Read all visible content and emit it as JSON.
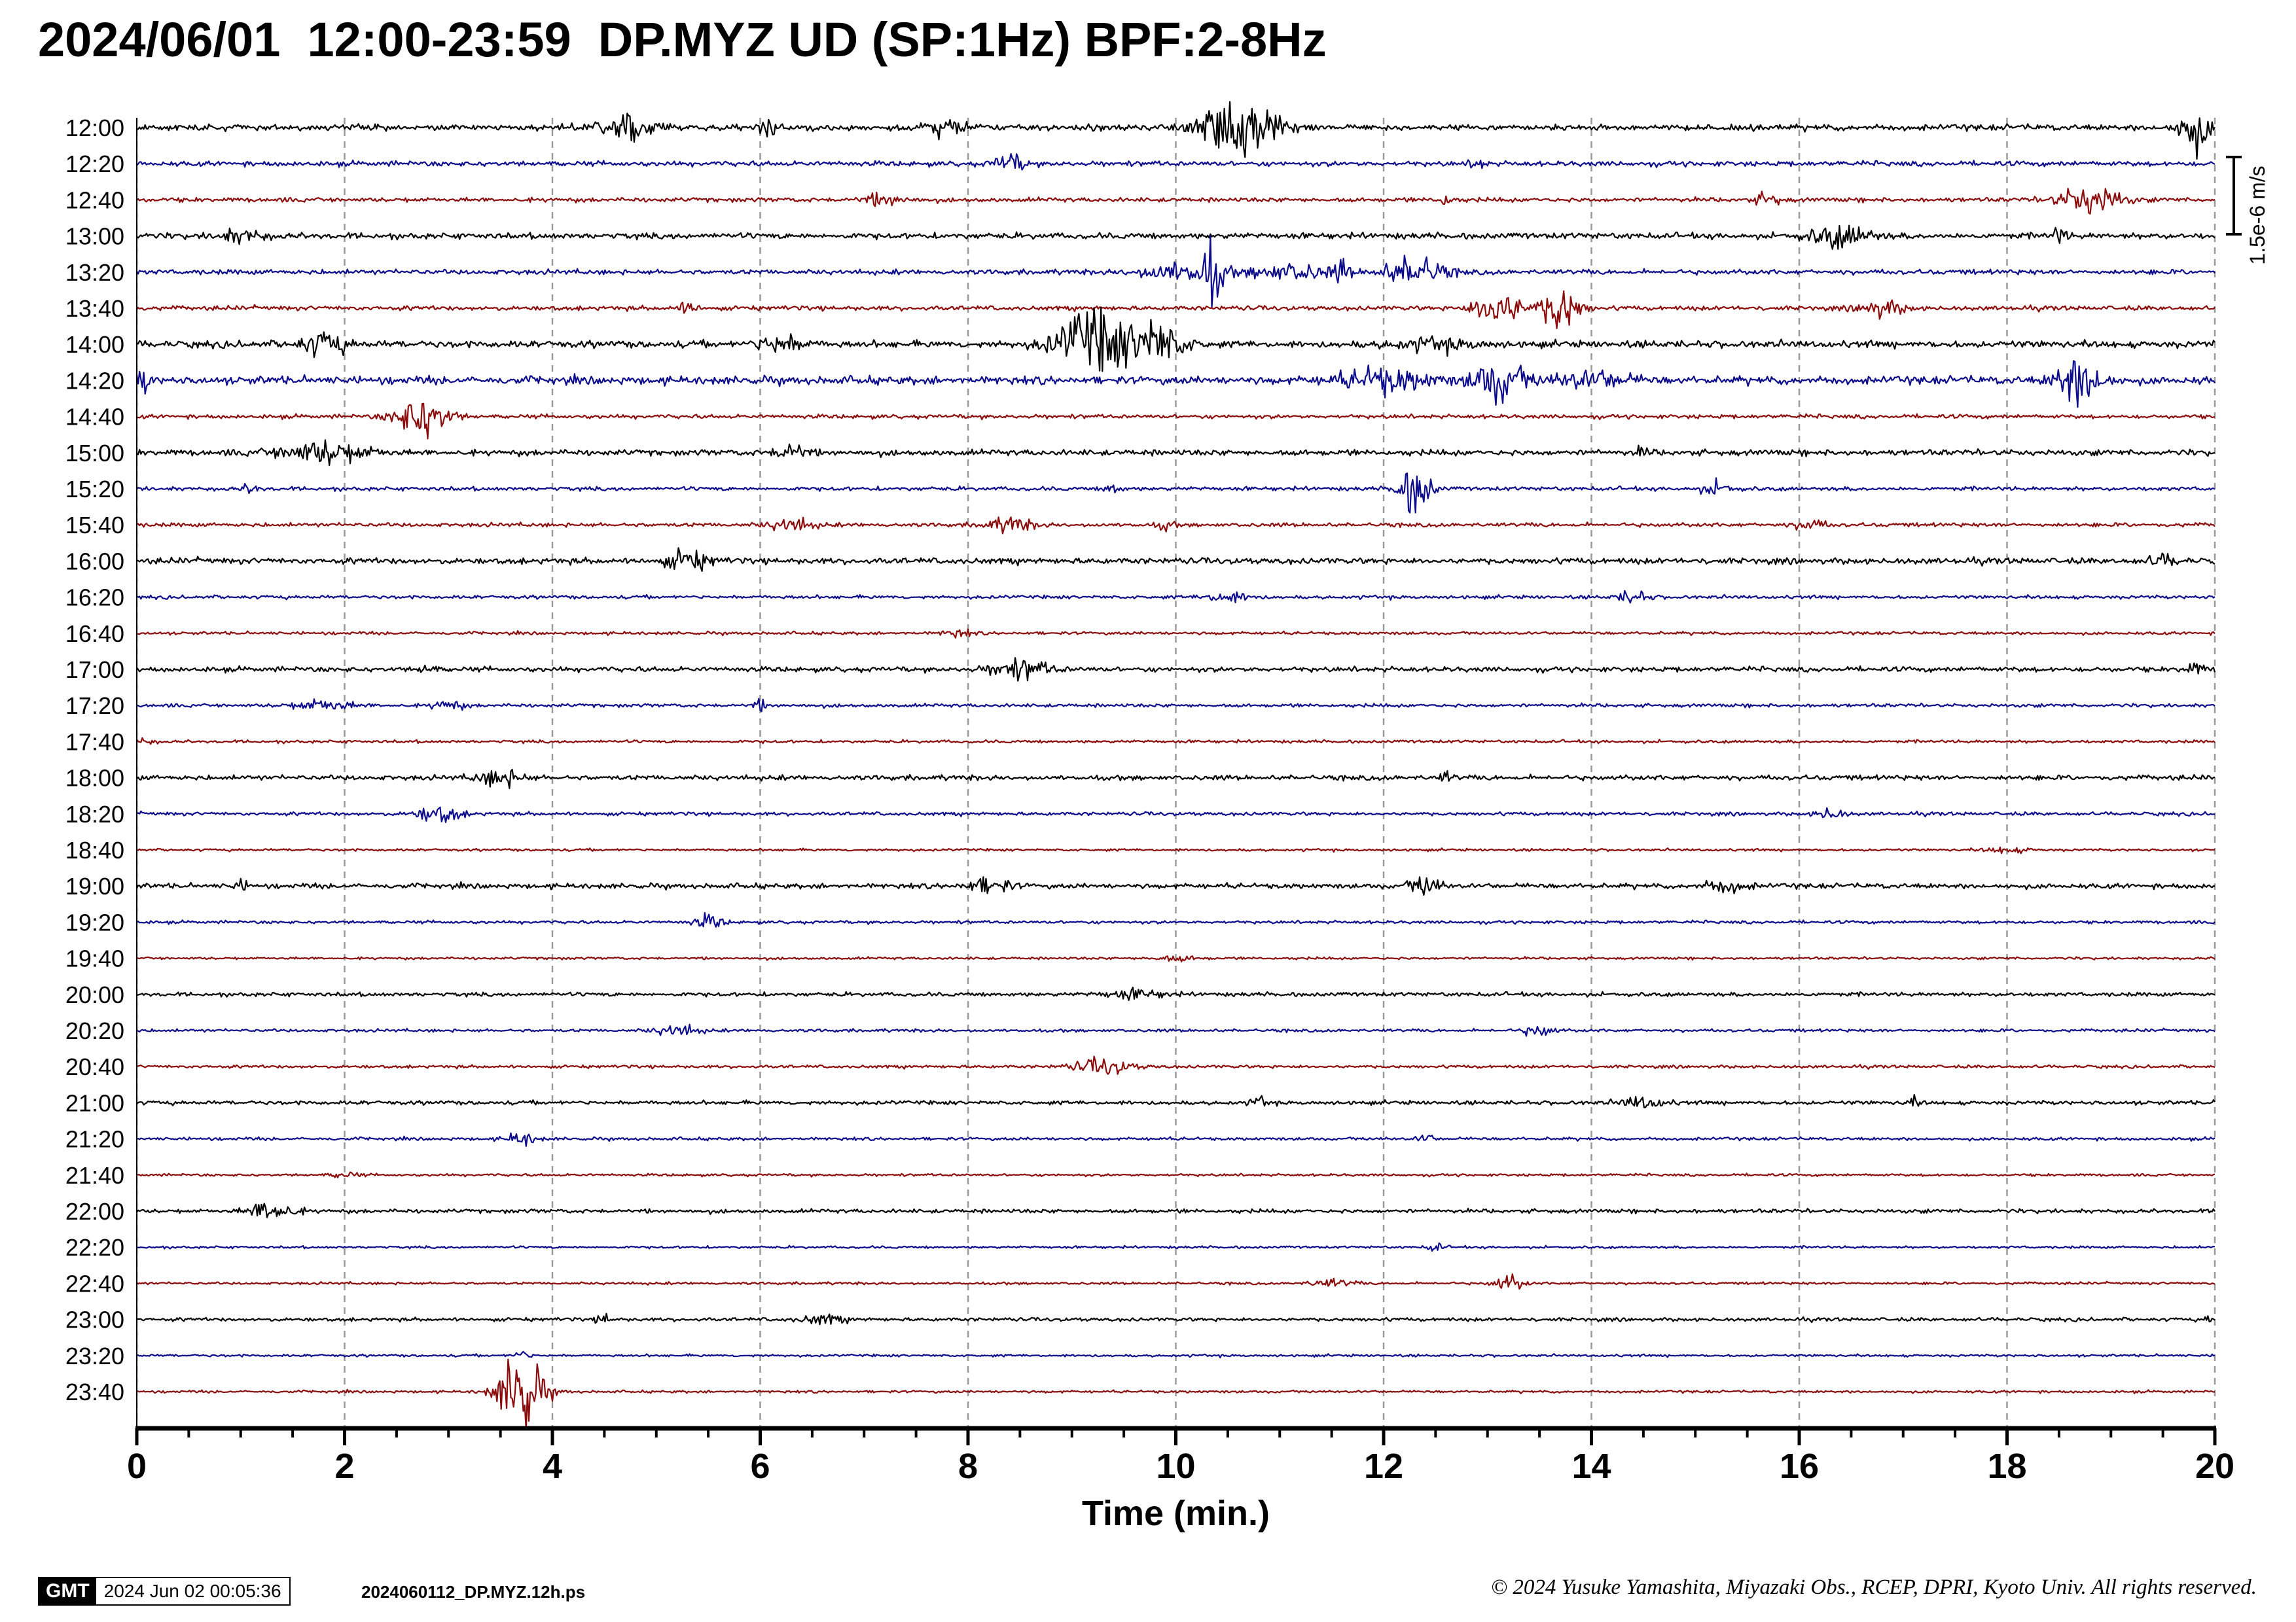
{
  "title": "2024/06/01  12:00-23:59  DP.MYZ UD (SP:1Hz) BPF:2-8Hz",
  "footer": {
    "logo": "GMT",
    "timestamp": "2024 Jun 02 00:05:36",
    "filename": "2024060112_DP.MYZ.12h.ps",
    "copyright": "© 2024 Yusuke Yamashita, Miyazaki Obs., RCEP, DPRI, Kyoto Univ. All rights reserved."
  },
  "chart_data": {
    "type": "line",
    "title": "2024/06/01  12:00-23:59  DP.MYZ UD (SP:1Hz) BPF:2-8Hz",
    "xlabel": "Time (min.)",
    "xlim": [
      0,
      20
    ],
    "x_ticks": [
      0,
      2,
      4,
      6,
      8,
      10,
      12,
      14,
      16,
      18,
      20
    ],
    "grid": "vertical dashed every 2 min",
    "scale_bar": {
      "label": "1.5e-6 m/s",
      "value": 1.5e-06,
      "unit": "m/s"
    },
    "trace_colors": [
      "#000000",
      "#0c0c8c",
      "#8c0c0c"
    ],
    "row_labels": [
      "12:00",
      "12:20",
      "12:40",
      "13:00",
      "13:20",
      "13:40",
      "14:00",
      "14:20",
      "14:40",
      "15:00",
      "15:20",
      "15:40",
      "16:00",
      "16:20",
      "16:40",
      "17:00",
      "17:20",
      "17:40",
      "18:00",
      "18:20",
      "18:40",
      "19:00",
      "19:20",
      "19:40",
      "20:00",
      "20:20",
      "20:40",
      "21:00",
      "21:20",
      "21:40",
      "22:00",
      "22:20",
      "22:40",
      "23:00",
      "23:20",
      "23:40"
    ],
    "noise_levels": [
      0.12,
      0.1,
      0.09,
      0.12,
      0.1,
      0.09,
      0.14,
      0.16,
      0.08,
      0.12,
      0.08,
      0.08,
      0.12,
      0.07,
      0.06,
      0.1,
      0.07,
      0.06,
      0.1,
      0.07,
      0.05,
      0.1,
      0.06,
      0.05,
      0.08,
      0.06,
      0.06,
      0.08,
      0.06,
      0.05,
      0.08,
      0.05,
      0.05,
      0.07,
      0.05,
      0.05
    ],
    "events": [
      [
        [
          4.7,
          0.35,
          0.8
        ],
        [
          6.1,
          0.15,
          0.4
        ],
        [
          7.8,
          0.3,
          0.45
        ],
        [
          10.6,
          0.5,
          1.5
        ],
        [
          19.8,
          0.2,
          1.3
        ]
      ],
      [
        [
          8.4,
          0.2,
          0.5
        ],
        [
          12.9,
          0.08,
          0.4
        ]
      ],
      [
        [
          7.2,
          0.3,
          0.3
        ],
        [
          12.6,
          0.1,
          0.35
        ],
        [
          15.7,
          0.15,
          0.4
        ],
        [
          18.8,
          0.4,
          0.85
        ]
      ],
      [
        [
          1.0,
          0.3,
          0.35
        ],
        [
          16.4,
          0.4,
          0.6
        ],
        [
          18.5,
          0.1,
          0.45
        ]
      ],
      [
        [
          10.0,
          0.5,
          0.5
        ],
        [
          10.35,
          0.15,
          1.5
        ],
        [
          11.1,
          0.6,
          0.4
        ],
        [
          11.6,
          0.1,
          0.6
        ],
        [
          12.3,
          0.4,
          0.8
        ]
      ],
      [
        [
          5.3,
          0.15,
          0.3
        ],
        [
          13.1,
          0.3,
          1.2
        ],
        [
          13.7,
          0.25,
          1.2
        ],
        [
          16.8,
          0.3,
          0.4
        ]
      ],
      [
        [
          1.8,
          0.3,
          0.6
        ],
        [
          6.2,
          0.3,
          0.55
        ],
        [
          9.2,
          0.5,
          1.7
        ],
        [
          9.8,
          0.4,
          1.1
        ],
        [
          12.5,
          0.6,
          0.25
        ]
      ],
      [
        [
          0.05,
          0.1,
          0.8
        ],
        [
          12.0,
          0.6,
          0.6
        ],
        [
          13.1,
          0.35,
          1.1
        ],
        [
          14.0,
          0.5,
          0.45
        ],
        [
          18.7,
          0.3,
          1.3
        ]
      ],
      [
        [
          2.75,
          0.35,
          1.2
        ]
      ],
      [
        [
          1.8,
          0.6,
          0.6
        ],
        [
          6.3,
          0.2,
          0.5
        ],
        [
          14.5,
          0.1,
          0.25
        ]
      ],
      [
        [
          1.1,
          0.1,
          0.3
        ],
        [
          9.4,
          0.1,
          0.3
        ],
        [
          12.3,
          0.2,
          1.4
        ],
        [
          15.2,
          0.2,
          0.35
        ]
      ],
      [
        [
          6.3,
          0.3,
          0.35
        ],
        [
          8.4,
          0.3,
          0.4
        ],
        [
          9.9,
          0.1,
          0.3
        ],
        [
          16.1,
          0.2,
          0.3
        ]
      ],
      [
        [
          5.3,
          0.3,
          0.5
        ],
        [
          19.5,
          0.2,
          0.3
        ]
      ],
      [
        [
          10.5,
          0.3,
          0.3
        ],
        [
          14.4,
          0.2,
          0.35
        ]
      ],
      [
        [
          7.9,
          0.2,
          0.2
        ]
      ],
      [
        [
          2.8,
          0.1,
          0.35
        ],
        [
          8.5,
          0.4,
          0.5
        ],
        [
          19.8,
          0.15,
          0.3
        ]
      ],
      [
        [
          1.8,
          0.4,
          0.3
        ],
        [
          3.0,
          0.2,
          0.3
        ],
        [
          6.0,
          0.1,
          0.25
        ]
      ],
      [
        [
          0.0,
          0.2,
          0.2
        ]
      ],
      [
        [
          3.5,
          0.3,
          0.45
        ],
        [
          12.6,
          0.1,
          0.25
        ]
      ],
      [
        [
          2.9,
          0.3,
          0.45
        ],
        [
          16.3,
          0.2,
          0.25
        ]
      ],
      [
        [
          18.0,
          0.3,
          0.15
        ]
      ],
      [
        [
          1.0,
          0.1,
          0.3
        ],
        [
          8.2,
          0.3,
          0.4
        ],
        [
          12.4,
          0.2,
          0.55
        ],
        [
          15.3,
          0.3,
          0.3
        ]
      ],
      [
        [
          5.5,
          0.2,
          0.35
        ]
      ],
      [
        [
          10.0,
          0.3,
          0.15
        ]
      ],
      [
        [
          9.6,
          0.4,
          0.25
        ]
      ],
      [
        [
          5.2,
          0.3,
          0.3
        ],
        [
          13.5,
          0.2,
          0.35
        ]
      ],
      [
        [
          9.3,
          0.4,
          0.4
        ]
      ],
      [
        [
          10.8,
          0.1,
          0.3
        ],
        [
          14.5,
          0.3,
          0.3
        ],
        [
          17.1,
          0.1,
          0.25
        ]
      ],
      [
        [
          3.7,
          0.2,
          0.35
        ],
        [
          12.4,
          0.1,
          0.3
        ]
      ],
      [
        [
          2.0,
          0.2,
          0.15
        ]
      ],
      [
        [
          1.3,
          0.3,
          0.6
        ]
      ],
      [
        [
          12.5,
          0.1,
          0.25
        ]
      ],
      [
        [
          11.5,
          0.3,
          0.2
        ],
        [
          13.2,
          0.2,
          0.45
        ]
      ],
      [
        [
          4.5,
          0.1,
          0.3
        ],
        [
          6.6,
          0.3,
          0.25
        ],
        [
          19.95,
          0.05,
          0.3
        ]
      ],
      [
        [
          3.7,
          0.1,
          0.3
        ]
      ],
      [
        [
          3.7,
          0.3,
          2.2
        ]
      ]
    ]
  }
}
